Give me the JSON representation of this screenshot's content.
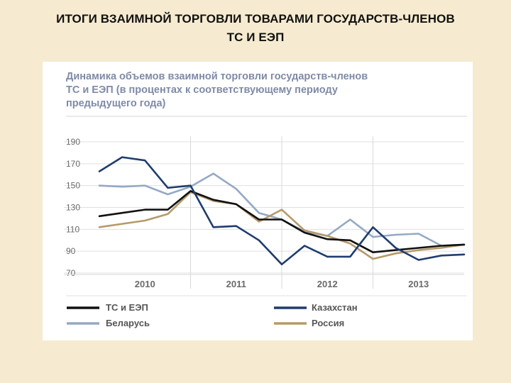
{
  "slide": {
    "title_line1": "ИТОГИ ВЗАИМНОЙ ТОРГОВЛИ ТОВАРАМИ ГОСУДАРСТВ-ЧЛЕНОВ",
    "title_line2": "ТС И ЕЭП"
  },
  "chart_data": {
    "type": "line",
    "title_lines": [
      "Динамика объемов взаимной торговли государств-членов",
      "ТС и ЕЭП (в процентах к соответствующему периоду",
      "предыдущего года)"
    ],
    "xlabel": "",
    "ylabel": "",
    "ylim": [
      70,
      190
    ],
    "y_ticks": [
      190,
      170,
      150,
      130,
      110,
      90,
      70
    ],
    "x_range": [
      0,
      16
    ],
    "year_labels": [
      {
        "label": "2010",
        "center": 2
      },
      {
        "label": "2011",
        "center": 6
      },
      {
        "label": "2012",
        "center": 10
      },
      {
        "label": "2013",
        "center": 14
      }
    ],
    "year_boundaries": [
      4,
      8,
      12
    ],
    "grid": true,
    "legend_position": "bottom",
    "series": [
      {
        "name": "ТС и ЕЭП",
        "color": "#111111",
        "x": [
          0,
          1,
          2,
          3,
          4,
          5,
          6,
          7,
          8,
          9,
          10,
          11,
          12,
          13,
          14,
          15,
          16
        ],
        "values": [
          122,
          125,
          128,
          128,
          145,
          137,
          133,
          119,
          119,
          107,
          101,
          100,
          89,
          91,
          93,
          95,
          96
        ]
      },
      {
        "name": "Казахстан",
        "color": "#1f3d6e",
        "x": [
          0,
          1,
          2,
          3,
          4,
          5,
          6,
          7,
          8,
          9,
          10,
          11,
          12,
          13,
          14,
          15,
          16
        ],
        "values": [
          163,
          176,
          173,
          148,
          150,
          112,
          113,
          100,
          78,
          95,
          85,
          85,
          112,
          93,
          82,
          86,
          87
        ]
      },
      {
        "name": "Беларусь",
        "color": "#94a9c4",
        "x": [
          0,
          1,
          2,
          3,
          4,
          5,
          6,
          7,
          8,
          9,
          10,
          11,
          12,
          13,
          14,
          15,
          16
        ],
        "values": [
          150,
          149,
          150,
          142,
          149,
          161,
          147,
          125,
          119,
          108,
          104,
          119,
          103,
          105,
          106,
          95,
          96
        ]
      },
      {
        "name": "Россия",
        "color": "#b59a6a",
        "x": [
          0,
          1,
          2,
          3,
          4,
          5,
          6,
          7,
          8,
          9,
          10,
          11,
          12,
          13,
          14,
          15,
          16
        ],
        "values": [
          112,
          115,
          118,
          124,
          144,
          136,
          133,
          117,
          128,
          109,
          104,
          97,
          83,
          88,
          91,
          93,
          96
        ]
      }
    ],
    "legend": [
      {
        "name": "ТС и ЕЭП",
        "color": "#111111"
      },
      {
        "name": "Казахстан",
        "color": "#1f3d6e"
      },
      {
        "name": "Беларусь",
        "color": "#94a9c4"
      },
      {
        "name": "Россия",
        "color": "#b59a6a"
      }
    ]
  }
}
